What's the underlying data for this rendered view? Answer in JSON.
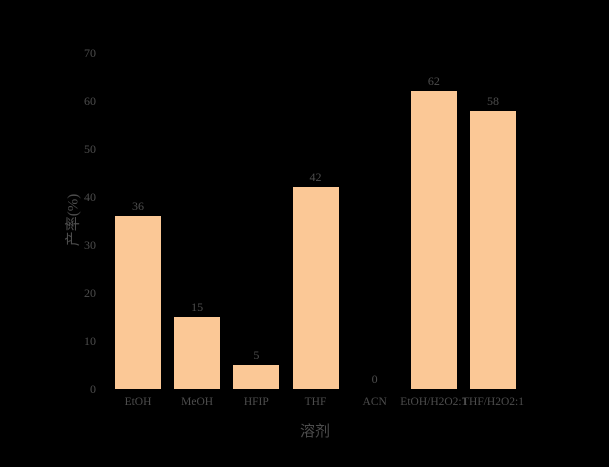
{
  "figure": {
    "background_color": "#000000",
    "text_color": "#4d4d4d",
    "bar_color": "#FBC896"
  },
  "chart_data": {
    "type": "bar",
    "title": "",
    "xlabel": "溶剂",
    "ylabel": "产率(%)",
    "categories": [
      "EtOH",
      "MeOH",
      "HFIP",
      "THF",
      "ACN",
      "EtOH/H2O2:1",
      "THF/H2O2:1"
    ],
    "values": [
      36,
      15,
      5,
      42,
      0,
      62,
      58
    ],
    "value_labels": [
      "36",
      "15",
      "5",
      "42",
      "0",
      "62",
      "58"
    ],
    "ylim": [
      0,
      70
    ],
    "yticks": [
      0,
      10,
      20,
      30,
      40,
      50,
      60,
      70
    ],
    "grid": false,
    "legend": null,
    "bar_color": "#FBC896"
  }
}
